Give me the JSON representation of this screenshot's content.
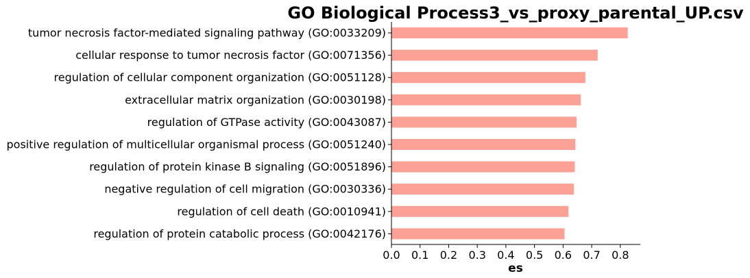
{
  "chart_data": {
    "type": "bar",
    "orientation": "horizontal",
    "title": "GO Biological Process3_vs_proxy_parental_UP.csv",
    "xlabel": "es",
    "ylabel": "",
    "categories": [
      "tumor necrosis factor-mediated signaling pathway (GO:0033209)",
      "cellular response to tumor necrosis factor (GO:0071356)",
      "regulation of cellular component organization (GO:0051128)",
      "extracellular matrix organization (GO:0030198)",
      "regulation of GTPase activity (GO:0043087)",
      "positive regulation of multicellular organismal process (GO:0051240)",
      "regulation of protein kinase B signaling (GO:0051896)",
      "negative regulation of cell migration (GO:0030336)",
      "regulation of cell death (GO:0010941)",
      "regulation of protein catabolic process (GO:0042176)"
    ],
    "values": [
      0.826,
      0.721,
      0.678,
      0.662,
      0.647,
      0.643,
      0.641,
      0.638,
      0.619,
      0.605
    ],
    "xlim": [
      0,
      0.87
    ],
    "xticks": [
      0.0,
      0.1,
      0.2,
      0.3,
      0.4,
      0.5,
      0.6,
      0.7,
      0.8
    ],
    "xtick_labels": [
      "0.0",
      "0.1",
      "0.2",
      "0.3",
      "0.4",
      "0.5",
      "0.6",
      "0.7",
      "0.8"
    ],
    "grid": false,
    "bar_color": "#fba195"
  }
}
